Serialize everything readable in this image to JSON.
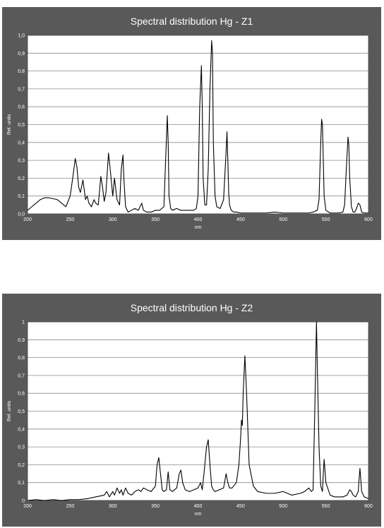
{
  "chart_data": [
    {
      "type": "line",
      "title": "Spectral distribution Hg - Z1",
      "xlabel": "nm",
      "ylabel": "Rel. units",
      "xlim": [
        200,
        600
      ],
      "ylim": [
        0,
        1.0
      ],
      "xticks": [
        "200",
        "250",
        "300",
        "350",
        "400",
        "450",
        "500",
        "550",
        "600"
      ],
      "yticks": [
        "0,0",
        "0,1",
        "0,2",
        "0,3",
        "0,4",
        "0,5",
        "0,6",
        "0,7",
        "0,8",
        "0,9",
        "1,0"
      ],
      "grid": true,
      "series": [
        {
          "color": "#000000",
          "x": [
            200,
            205,
            210,
            215,
            220,
            225,
            230,
            235,
            240,
            245,
            250,
            253,
            256,
            258,
            260,
            262,
            265,
            268,
            270,
            272,
            275,
            278,
            280,
            283,
            286,
            288,
            290,
            292,
            295,
            297,
            300,
            302,
            305,
            308,
            310,
            312,
            313,
            315,
            318,
            322,
            326,
            330,
            334,
            336,
            340,
            345,
            350,
            355,
            360,
            362,
            364,
            365,
            366,
            368,
            370,
            375,
            380,
            385,
            390,
            395,
            398,
            400,
            402,
            404,
            405,
            406,
            408,
            410,
            412,
            414,
            416,
            417,
            418,
            420,
            422,
            426,
            430,
            433,
            434,
            435,
            436,
            437,
            439,
            442,
            445,
            450,
            460,
            470,
            480,
            490,
            500,
            510,
            520,
            530,
            535,
            540,
            542,
            544,
            545,
            546,
            547,
            548,
            550,
            555,
            560,
            565,
            570,
            572,
            574,
            576,
            577,
            578,
            580,
            582,
            584,
            586,
            588,
            590,
            592,
            595,
            600
          ],
          "y": [
            0.02,
            0.04,
            0.06,
            0.08,
            0.09,
            0.09,
            0.085,
            0.08,
            0.06,
            0.04,
            0.1,
            0.2,
            0.31,
            0.26,
            0.15,
            0.12,
            0.19,
            0.08,
            0.1,
            0.06,
            0.04,
            0.08,
            0.06,
            0.05,
            0.21,
            0.15,
            0.07,
            0.12,
            0.34,
            0.25,
            0.1,
            0.2,
            0.08,
            0.05,
            0.25,
            0.33,
            0.2,
            0.04,
            0.01,
            0.02,
            0.03,
            0.02,
            0.06,
            0.02,
            0.01,
            0.01,
            0.02,
            0.02,
            0.04,
            0.3,
            0.55,
            0.4,
            0.1,
            0.03,
            0.02,
            0.03,
            0.02,
            0.02,
            0.02,
            0.02,
            0.03,
            0.1,
            0.6,
            0.83,
            0.6,
            0.2,
            0.05,
            0.05,
            0.25,
            0.7,
            0.97,
            0.9,
            0.4,
            0.1,
            0.04,
            0.03,
            0.08,
            0.35,
            0.46,
            0.3,
            0.12,
            0.05,
            0.02,
            0.01,
            0.01,
            0.005,
            0.005,
            0.005,
            0.005,
            0.01,
            0.005,
            0.005,
            0.005,
            0.005,
            0.01,
            0.02,
            0.08,
            0.4,
            0.53,
            0.5,
            0.3,
            0.1,
            0.02,
            0.005,
            0.005,
            0.005,
            0.01,
            0.05,
            0.25,
            0.43,
            0.38,
            0.2,
            0.04,
            0.01,
            0.01,
            0.03,
            0.06,
            0.05,
            0.01,
            0.005,
            0.005
          ]
        }
      ]
    },
    {
      "type": "line",
      "title": "Spectral distribution Hg - Z2",
      "xlabel": "nm",
      "ylabel": "Rel. units",
      "xlim": [
        200,
        600
      ],
      "ylim": [
        0,
        1.0
      ],
      "xticks": [
        "200",
        "250",
        "300",
        "350",
        "400",
        "450",
        "500",
        "550",
        "600"
      ],
      "yticks": [
        "0",
        "0,1",
        "0,2",
        "0,3",
        "0,4",
        "0,5",
        "0,6",
        "0,7",
        "0,8",
        "0,9",
        "1"
      ],
      "grid": true,
      "series": [
        {
          "color": "#000000",
          "x": [
            200,
            210,
            220,
            230,
            240,
            250,
            260,
            270,
            275,
            280,
            285,
            290,
            293,
            296,
            300,
            302,
            305,
            308,
            310,
            312,
            315,
            318,
            322,
            326,
            330,
            333,
            336,
            340,
            345,
            350,
            352,
            354,
            356,
            358,
            360,
            363,
            365,
            367,
            370,
            375,
            378,
            380,
            382,
            385,
            390,
            395,
            400,
            403,
            405,
            407,
            410,
            412,
            414,
            416,
            418,
            420,
            425,
            430,
            433,
            435,
            437,
            440,
            445,
            448,
            450,
            451,
            452,
            453,
            455,
            457,
            460,
            465,
            470,
            480,
            490,
            500,
            510,
            520,
            525,
            530,
            533,
            535,
            537,
            539,
            540,
            542,
            544,
            546,
            547,
            548,
            550,
            555,
            560,
            565,
            570,
            575,
            578,
            580,
            582,
            585,
            588,
            589,
            590,
            592,
            595,
            600
          ],
          "y": [
            0.0,
            0.005,
            0.0,
            0.005,
            0.0,
            0.005,
            0.005,
            0.01,
            0.015,
            0.02,
            0.025,
            0.03,
            0.05,
            0.02,
            0.05,
            0.03,
            0.07,
            0.04,
            0.06,
            0.03,
            0.07,
            0.04,
            0.03,
            0.05,
            0.06,
            0.05,
            0.07,
            0.06,
            0.05,
            0.08,
            0.2,
            0.24,
            0.15,
            0.06,
            0.05,
            0.06,
            0.16,
            0.06,
            0.05,
            0.07,
            0.15,
            0.17,
            0.1,
            0.06,
            0.05,
            0.06,
            0.07,
            0.1,
            0.06,
            0.15,
            0.3,
            0.34,
            0.2,
            0.08,
            0.06,
            0.05,
            0.06,
            0.07,
            0.15,
            0.1,
            0.07,
            0.07,
            0.1,
            0.2,
            0.35,
            0.45,
            0.42,
            0.6,
            0.81,
            0.6,
            0.2,
            0.08,
            0.05,
            0.04,
            0.04,
            0.05,
            0.03,
            0.04,
            0.05,
            0.07,
            0.05,
            0.06,
            0.5,
            1.0,
            0.75,
            0.3,
            0.08,
            0.05,
            0.15,
            0.23,
            0.1,
            0.03,
            0.02,
            0.02,
            0.02,
            0.03,
            0.06,
            0.05,
            0.03,
            0.02,
            0.05,
            0.12,
            0.18,
            0.05,
            0.02,
            0.01
          ]
        }
      ]
    }
  ]
}
